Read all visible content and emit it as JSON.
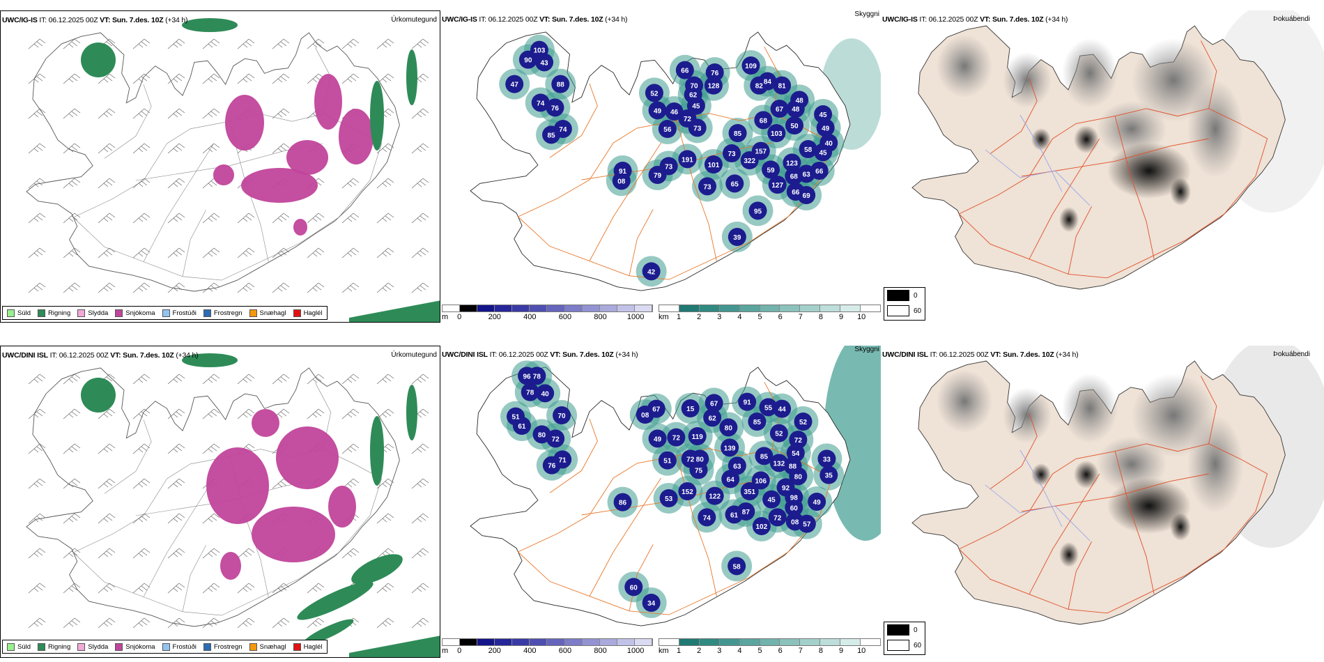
{
  "colors": {
    "navy": "#1c1c8f",
    "teal": "#3f9c90",
    "road": "#e8782a",
    "magenta": "#c1449b",
    "rain": "#2e8b57"
  },
  "rows": [
    {
      "panels": [
        {
          "model": "UWC/IG-IS",
          "it_label": "IT:",
          "it": "06.12.2025 00Z",
          "vt": "VT: Sun. 7.des. 10Z",
          "lead": "(+34 h)",
          "field": "Úrkomutegund"
        },
        {
          "model": "UWC/IG-IS",
          "it_label": "IT:",
          "it": "06.12.2025 00Z",
          "vt": "VT: Sun. 7.des. 10Z",
          "lead": "(+34 h)",
          "field": "Skyggni"
        },
        {
          "model": "UWC/IG-IS",
          "it_label": "IT:",
          "it": "06.12.2025 00Z",
          "vt": "VT: Sun. 7.des. 10Z",
          "lead": "(+34 h)",
          "field": "Þokuábendi"
        }
      ],
      "cloud_base_labels": [
        "103",
        "90",
        "43",
        "47",
        "88",
        "74",
        "76",
        "74",
        "85",
        "52",
        "49",
        "46",
        "56",
        "66",
        "70",
        "62",
        "45",
        "72",
        "73",
        "191",
        "76",
        "128",
        "109",
        "84",
        "82",
        "81",
        "67",
        "68",
        "48",
        "48",
        "45",
        "50",
        "49",
        "40",
        "58",
        "45",
        "103",
        "85",
        "157",
        "73",
        "322",
        "101",
        "59",
        "123",
        "127",
        "65",
        "73",
        "63",
        "66",
        "68",
        "66",
        "69",
        "95",
        "39",
        "42",
        "91",
        "08",
        "79",
        "73"
      ]
    },
    {
      "panels": [
        {
          "model": "UWC/DINI ISL",
          "it_label": "IT:",
          "it": "06.12.2025 00Z",
          "vt": "VT: Sun. 7.des. 10Z",
          "lead": "(+34 h)",
          "field": "Úrkomutegund"
        },
        {
          "model": "UWC/DINI ISL",
          "it_label": "IT:",
          "it": "06.12.2025 00Z",
          "vt": "VT: Sun. 7.des. 10Z",
          "lead": "(+34 h)",
          "field": "Skyggni"
        },
        {
          "model": "UWC/DINI ISL",
          "it_label": "IT:",
          "it": "06.12.2025 00Z",
          "vt": "VT: Sun. 7.des. 10Z",
          "lead": "(+34 h)",
          "field": "Þokuábendi"
        }
      ],
      "cloud_base_labels": [
        "96",
        "78",
        "78",
        "40",
        "51",
        "70",
        "61",
        "80",
        "72",
        "71",
        "76",
        "67",
        "08",
        "49",
        "72",
        "51",
        "15",
        "119",
        "72",
        "80",
        "75",
        "152",
        "67",
        "62",
        "80",
        "91",
        "55",
        "44",
        "85",
        "52",
        "52",
        "72",
        "139",
        "85",
        "63",
        "132",
        "54",
        "88",
        "33",
        "35",
        "80",
        "64",
        "106",
        "92",
        "351",
        "122",
        "45",
        "98",
        "49",
        "60",
        "53",
        "86",
        "74",
        "61",
        "87",
        "72",
        "102",
        "08",
        "57",
        "58",
        "60",
        "34"
      ]
    }
  ],
  "precip_legend": [
    {
      "label": "Súld",
      "color": "#98f08f"
    },
    {
      "label": "Rigning",
      "color": "#2e8b57"
    },
    {
      "label": "Slydda",
      "color": "#f2a9d8"
    },
    {
      "label": "Snjókoma",
      "color": "#c1449b"
    },
    {
      "label": "Frostúði",
      "color": "#92c3f2"
    },
    {
      "label": "Frostregn",
      "color": "#2b6cb5"
    },
    {
      "label": "Snæhagl",
      "color": "#f5980c"
    },
    {
      "label": "Haglél",
      "color": "#e31212"
    }
  ],
  "cloud_base_scale": {
    "unit": "m",
    "labels": [
      "0",
      "200",
      "400",
      "600",
      "800",
      "1000"
    ],
    "colors": [
      "#ffffff",
      "#000000",
      "#14148a",
      "#26269a",
      "#3a3aa6",
      "#4f4fb2",
      "#6565bd",
      "#7c7cc8",
      "#9393d3",
      "#aaaadd",
      "#c2c2e8",
      "#dadaf3"
    ]
  },
  "visibility_scale": {
    "unit": "km",
    "labels": [
      "1",
      "2",
      "3",
      "4",
      "5",
      "6",
      "7",
      "8",
      "9",
      "10"
    ],
    "colors": [
      "#ffffff",
      "#1f7a73",
      "#2f8a82",
      "#439790",
      "#5aa59e",
      "#72b3ad",
      "#8bc2bc",
      "#a4d0cb",
      "#bddeda",
      "#d6ece9",
      "#ffffff"
    ]
  },
  "fog_legend": [
    {
      "label": "0",
      "color": "#000000"
    },
    {
      "label": "60",
      "color": "#ffffff"
    }
  ]
}
